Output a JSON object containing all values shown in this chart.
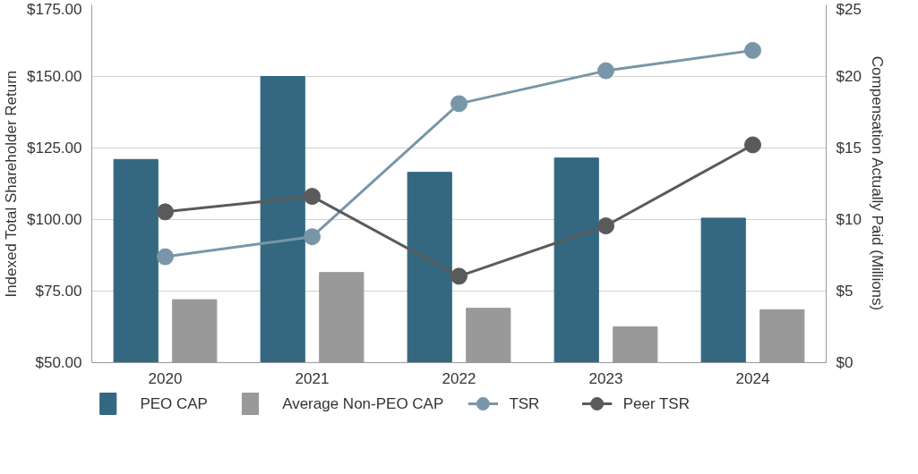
{
  "chart_data": {
    "type": "bar",
    "categories": [
      "2020",
      "2021",
      "2022",
      "2023",
      "2024"
    ],
    "ylabel": "Indexed Total Shareholder Return",
    "y2label": "Compensation Actually Paid (Millions)",
    "ylim": [
      50,
      175
    ],
    "yticks": [
      {
        "value": 50,
        "label": "$50.00"
      },
      {
        "value": 75,
        "label": "$75.00"
      },
      {
        "value": 100,
        "label": "$100.00"
      },
      {
        "value": 125,
        "label": "$125.00"
      },
      {
        "value": 150,
        "label": "$150.00"
      },
      {
        "value": 175,
        "label": "$175.00"
      }
    ],
    "y2lim": [
      0,
      25
    ],
    "y2ticks": [
      {
        "value": 0,
        "label": "$0"
      },
      {
        "value": 5,
        "label": "$5"
      },
      {
        "value": 10,
        "label": "$10"
      },
      {
        "value": 15,
        "label": "$15"
      },
      {
        "value": 20,
        "label": "$20"
      },
      {
        "value": 25,
        "label": "$25"
      }
    ],
    "grid": "y",
    "legend": "bottom",
    "marker": "circle",
    "series": [
      {
        "name": "PEO CAP",
        "axis": "y2",
        "color": "#336880",
        "values": [
          14.2,
          20.0,
          13.3,
          14.3,
          10.1
        ]
      },
      {
        "name": "Average Non-PEO CAP",
        "axis": "y2",
        "color": "#999999",
        "values": [
          4.4,
          6.3,
          3.8,
          2.5,
          3.7
        ]
      },
      {
        "name": "TSR",
        "type": "line",
        "color": "#7896a8",
        "values": [
          87.0,
          94.0,
          140.5,
          152.0,
          159.1
        ]
      },
      {
        "name": "Peer TSR",
        "type": "line",
        "color": "#5a5a5a",
        "values": [
          102.7,
          108.1,
          80.2,
          97.8,
          126.1
        ]
      }
    ]
  }
}
